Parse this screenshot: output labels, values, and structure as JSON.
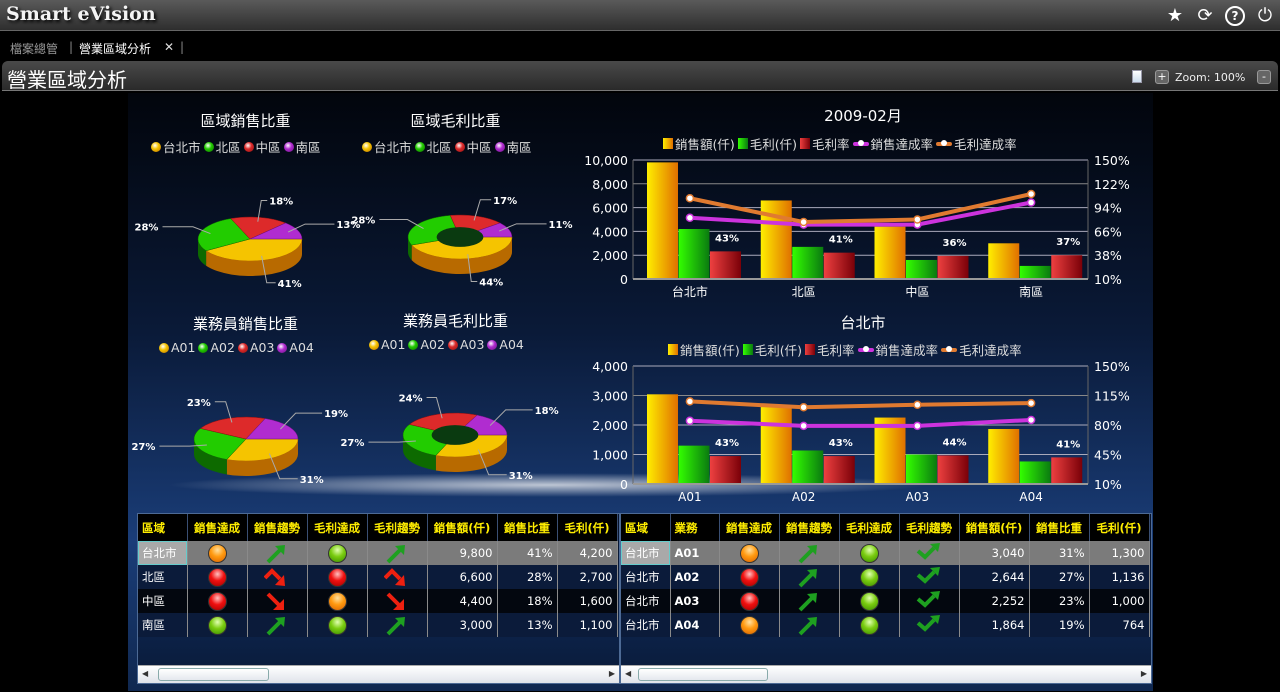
{
  "app": {
    "title": "Smart eVision",
    "icons": [
      "star-icon",
      "refresh-icon",
      "help-icon",
      "power-icon"
    ]
  },
  "tabs": [
    {
      "label": "檔案總管",
      "active": false
    },
    {
      "label": "營業區域分析",
      "active": true,
      "close": "✕"
    }
  ],
  "page": {
    "title": "營業區域分析",
    "zoom_label": "Zoom: 100%",
    "zoom_in": "+",
    "zoom_out": "-"
  },
  "colors": {
    "c1": "#f5c400",
    "c2": "#22cc00",
    "c3": "#dd2a2a",
    "c4": "#b02cd0",
    "sales_rate": "#cc33dd",
    "profit_rate": "#e07a30"
  },
  "pies": [
    {
      "title": "區域銷售比重",
      "legend": [
        "台北市",
        "北區",
        "中區",
        "南區"
      ],
      "values": [
        41,
        28,
        18,
        13
      ],
      "labels": [
        "41%",
        "28%",
        "18%",
        "13%"
      ],
      "donut": false
    },
    {
      "title": "區域毛利比重",
      "legend": [
        "台北市",
        "北區",
        "中區",
        "南區"
      ],
      "values": [
        44,
        28,
        17,
        11
      ],
      "labels": [
        "44%",
        "28%",
        "17%",
        "11%"
      ],
      "donut": true
    },
    {
      "title": "業務員銷售比重",
      "legend": [
        "A01",
        "A02",
        "A03",
        "A04"
      ],
      "values": [
        31,
        27,
        23,
        19
      ],
      "labels": [
        "31%",
        "27%",
        "23%",
        "19%"
      ],
      "donut": false
    },
    {
      "title": "業務員毛利比重",
      "legend": [
        "A01",
        "A02",
        "A03",
        "A04"
      ],
      "values": [
        31,
        27,
        24,
        18
      ],
      "labels": [
        "31%",
        "27%",
        "24%",
        "18%"
      ],
      "donut": true
    }
  ],
  "chart_data": [
    {
      "type": "bar",
      "title": "2009-02月",
      "categories": [
        "台北市",
        "北區",
        "中區",
        "南區"
      ],
      "series": [
        {
          "name": "銷售額(仟)",
          "type": "bar",
          "values": [
            9800,
            6600,
            4400,
            3000
          ]
        },
        {
          "name": "毛利(仟)",
          "type": "bar",
          "values": [
            4200,
            2700,
            1600,
            1100
          ]
        },
        {
          "name": "毛利率",
          "type": "bar",
          "values": [
            43,
            41,
            36,
            37
          ],
          "labels": [
            "43%",
            "41%",
            "36%",
            "37%"
          ]
        },
        {
          "name": "銷售達成率",
          "type": "line",
          "axis": "right",
          "values": [
            82,
            74,
            74,
            100
          ]
        },
        {
          "name": "毛利達成率",
          "type": "line",
          "axis": "right",
          "values": [
            105,
            77,
            80,
            110
          ]
        }
      ],
      "ylim": [
        0,
        10000
      ],
      "yticks": [
        "10,000",
        "8,000",
        "6,000",
        "4,000",
        "2,000",
        "0"
      ],
      "y2lim": [
        10,
        150
      ],
      "y2ticks": [
        "150%",
        "122%",
        "94%",
        "66%",
        "38%",
        "10%"
      ],
      "grid": true,
      "legend": "top"
    },
    {
      "type": "bar",
      "title": "台北市",
      "categories": [
        "A01",
        "A02",
        "A03",
        "A04"
      ],
      "series": [
        {
          "name": "銷售額(仟)",
          "type": "bar",
          "values": [
            3040,
            2644,
            2252,
            1864
          ]
        },
        {
          "name": "毛利(仟)",
          "type": "bar",
          "values": [
            1300,
            1136,
            1000,
            764
          ]
        },
        {
          "name": "毛利率",
          "type": "bar",
          "values": [
            43,
            43,
            44,
            41
          ],
          "labels": [
            "43%",
            "43%",
            "44%",
            "41%"
          ]
        },
        {
          "name": "銷售達成率",
          "type": "line",
          "axis": "right",
          "values": [
            85,
            79,
            79,
            86
          ]
        },
        {
          "name": "毛利達成率",
          "type": "line",
          "axis": "right",
          "values": [
            108,
            101,
            104,
            106
          ]
        }
      ],
      "ylim": [
        0,
        4000
      ],
      "yticks": [
        "4,000",
        "3,000",
        "2,000",
        "1,000",
        "0"
      ],
      "y2lim": [
        10,
        150
      ],
      "y2ticks": [
        "150%",
        "115%",
        "80%",
        "45%",
        "10%"
      ],
      "grid": true,
      "legend": "top"
    }
  ],
  "table_left": {
    "headers": [
      "區域",
      "銷售達成",
      "銷售趨勢",
      "毛利達成",
      "毛利趨勢",
      "銷售額(仟)",
      "銷售比重",
      "毛利(仟)"
    ],
    "rows": [
      {
        "region": "台北市",
        "sales_status": "orange",
        "sales_trend": "up",
        "profit_status": "green",
        "profit_trend": "up",
        "sales": "9,800",
        "share": "41%",
        "profit": "4,200"
      },
      {
        "region": "北區",
        "sales_status": "red",
        "sales_trend": "peak-down",
        "profit_status": "red",
        "profit_trend": "peak-down",
        "sales": "6,600",
        "share": "28%",
        "profit": "2,700"
      },
      {
        "region": "中區",
        "sales_status": "red",
        "sales_trend": "down",
        "profit_status": "orange",
        "profit_trend": "down",
        "sales": "4,400",
        "share": "18%",
        "profit": "1,600"
      },
      {
        "region": "南區",
        "sales_status": "green",
        "sales_trend": "up",
        "profit_status": "green",
        "profit_trend": "up",
        "sales": "3,000",
        "share": "13%",
        "profit": "1,100"
      }
    ]
  },
  "table_right": {
    "headers": [
      "區域",
      "業務",
      "銷售達成",
      "銷售趨勢",
      "毛利達成",
      "毛利趨勢",
      "銷售額(仟)",
      "銷售比重",
      "毛利(仟)"
    ],
    "rows": [
      {
        "region": "台北市",
        "rep": "A01",
        "sales_status": "orange",
        "sales_trend": "up",
        "profit_status": "green",
        "profit_trend": "check-up",
        "sales": "3,040",
        "share": "31%",
        "profit": "1,300"
      },
      {
        "region": "台北市",
        "rep": "A02",
        "sales_status": "red",
        "sales_trend": "up",
        "profit_status": "green",
        "profit_trend": "check-up",
        "sales": "2,644",
        "share": "27%",
        "profit": "1,136"
      },
      {
        "region": "台北市",
        "rep": "A03",
        "sales_status": "red",
        "sales_trend": "up",
        "profit_status": "green",
        "profit_trend": "check-up",
        "sales": "2,252",
        "share": "23%",
        "profit": "1,000"
      },
      {
        "region": "台北市",
        "rep": "A04",
        "sales_status": "orange",
        "sales_trend": "up",
        "profit_status": "green",
        "profit_trend": "check-up",
        "sales": "1,864",
        "share": "19%",
        "profit": "764"
      }
    ]
  }
}
